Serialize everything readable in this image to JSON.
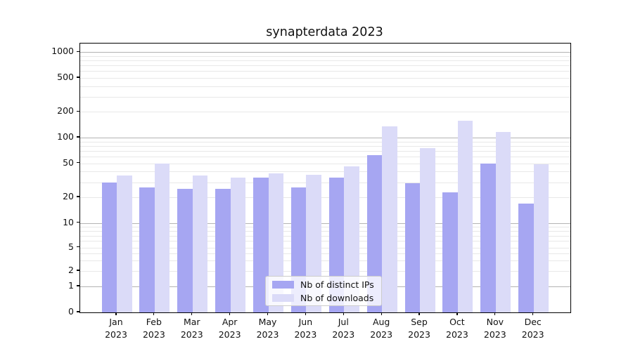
{
  "chart": {
    "title": "synapterdata 2023",
    "chart_data": {
      "type": "bar",
      "title": "synapterdata 2023",
      "categories": [
        "Jan",
        "Feb",
        "Mar",
        "Apr",
        "May",
        "Jun",
        "Jul",
        "Aug",
        "Sep",
        "Oct",
        "Nov",
        "Dec"
      ],
      "category_year": "2023",
      "series": [
        {
          "name": "Nb of distinct IPs",
          "color": "#a6a6f2",
          "values": [
            30,
            26,
            25,
            25,
            34,
            26,
            34,
            62,
            29,
            23,
            50,
            17
          ]
        },
        {
          "name": "Nb of downloads",
          "color": "#dbdbf8",
          "values": [
            36,
            50,
            36,
            34,
            38,
            37,
            46,
            135,
            76,
            158,
            116,
            49
          ]
        }
      ],
      "y_ticks": [
        1000,
        500,
        200,
        100,
        50,
        20,
        10,
        5,
        2,
        1,
        0
      ],
      "yscale": "symlog",
      "ylim": [
        0,
        1100
      ],
      "grid": true,
      "legend_position": "lower center"
    },
    "colors": {
      "bar_distinct_ips": "#a6a6f2",
      "bar_downloads": "#dbdbf8",
      "grid_major": "#b3b3b3",
      "grid_minor": "#e8e8e8",
      "axis": "#000000",
      "background": "#ffffff",
      "legend_border": "#cccccc",
      "text": "#111111"
    }
  }
}
